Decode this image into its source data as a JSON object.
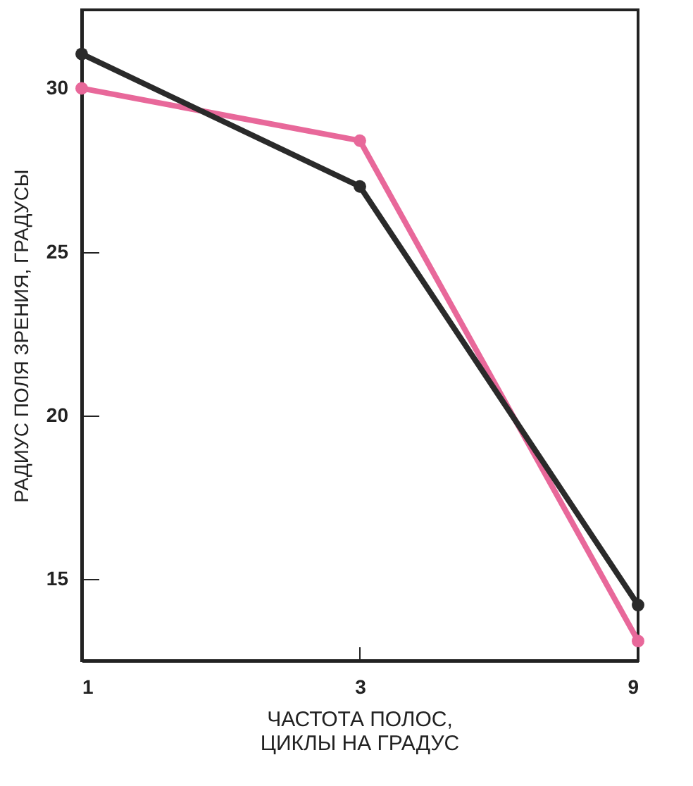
{
  "chart_data": {
    "type": "line",
    "xlabel": "ЧАСТОТА ПОЛОС,\nЦИКЛЫ НА ГРАДУС",
    "ylabel": "РАДИУС ПОЛЯ ЗРЕНИЯ, ГРАДУСЫ",
    "x": [
      1,
      3,
      9
    ],
    "log": "x",
    "xlim": [
      1,
      9
    ],
    "xticks": [
      1,
      3,
      9
    ],
    "ylim": [
      12.5,
      32.4
    ],
    "yticks": [
      15,
      20,
      25,
      30
    ],
    "marker": "circle",
    "line_style": "solid",
    "grid": false,
    "series": [
      {
        "color": "#e8689a",
        "values": [
          30.0,
          28.4,
          13.1
        ]
      },
      {
        "color": "#2a2a2a",
        "values": [
          31.05,
          27.0,
          14.2
        ]
      }
    ]
  }
}
